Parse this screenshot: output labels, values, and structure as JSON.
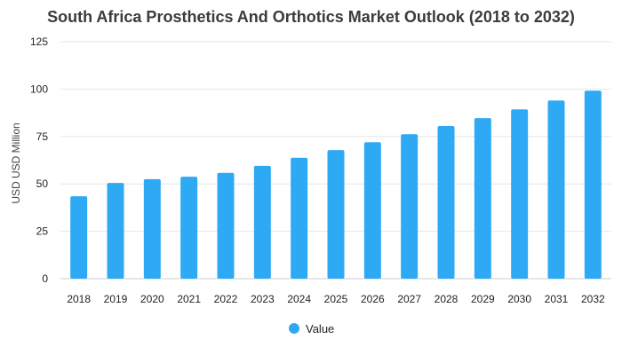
{
  "chart_data": {
    "type": "bar",
    "title": "South Africa Prosthetics And Orthotics Market Outlook (2018 to 2032)",
    "xlabel": "",
    "ylabel": "USD USD Million",
    "ylim": [
      0,
      125
    ],
    "yticks": [
      0,
      25,
      50,
      75,
      100,
      125
    ],
    "categories": [
      "2018",
      "2019",
      "2020",
      "2021",
      "2022",
      "2023",
      "2024",
      "2025",
      "2026",
      "2027",
      "2028",
      "2029",
      "2030",
      "2031",
      "2032"
    ],
    "series": [
      {
        "name": "Value",
        "color": "#2eaaf5",
        "values": [
          43.5,
          50.5,
          52.5,
          53.8,
          55.8,
          59.5,
          63.8,
          67.8,
          72.0,
          76.2,
          80.5,
          84.7,
          89.3,
          94.0,
          99.2
        ]
      }
    ],
    "grid": true,
    "legend_position": "bottom-center"
  }
}
